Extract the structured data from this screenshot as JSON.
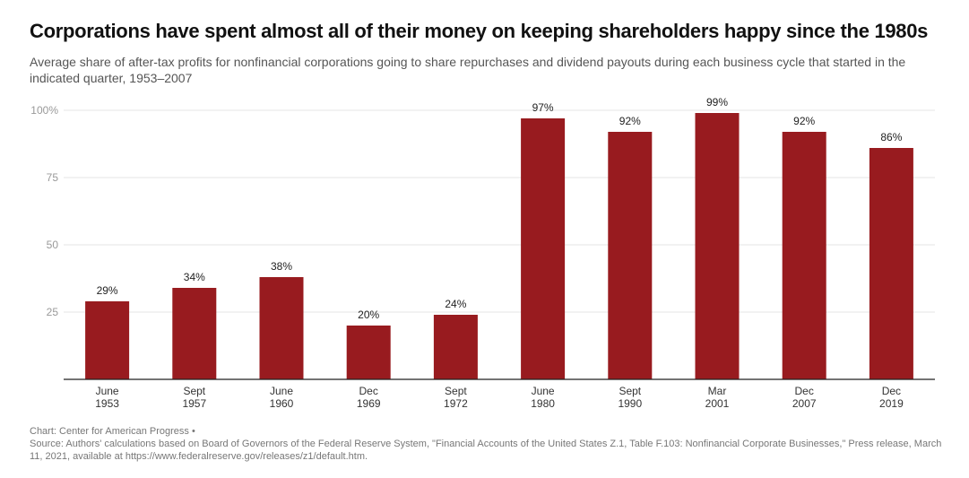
{
  "title": "Corporations have spent almost all of their money on keeping shareholders happy since the 1980s",
  "subtitle": "Average share of after-tax profits for nonfinancial corporations going to share repurchases and dividend payouts during each business cycle that started in the indicated quarter, 1953–2007",
  "footer": {
    "credit": "Chart: Center for American Progress •",
    "source": "Source: Authors' calculations based on Board of Governors of the Federal Reserve System, \"Financial Accounts of the United States Z.1, Table F.103: Nonfinancial Corporate Businesses,\" Press release, March 11, 2021, available at https://www.federalreserve.gov/releases/z1/default.htm."
  },
  "colors": {
    "bar": "#981b1f",
    "grid": "#e6e6e6",
    "axis": "#222222",
    "tick": "#999999"
  },
  "chart_data": {
    "type": "bar",
    "categories": [
      [
        "June",
        "1953"
      ],
      [
        "Sept",
        "1957"
      ],
      [
        "June",
        "1960"
      ],
      [
        "Dec",
        "1969"
      ],
      [
        "Sept",
        "1972"
      ],
      [
        "June",
        "1980"
      ],
      [
        "Sept",
        "1990"
      ],
      [
        "Mar",
        "2001"
      ],
      [
        "Dec",
        "2007"
      ],
      [
        "Dec",
        "2019"
      ]
    ],
    "values": [
      29,
      34,
      38,
      20,
      24,
      97,
      92,
      99,
      92,
      86
    ],
    "labels": [
      "29%",
      "34%",
      "38%",
      "20%",
      "24%",
      "97%",
      "92%",
      "99%",
      "92%",
      "86%"
    ],
    "yticks": [
      25,
      50,
      75,
      100
    ],
    "ytick_labels": [
      "25",
      "50",
      "75",
      "100%"
    ],
    "ylim": [
      0,
      100
    ],
    "xlabel": "",
    "ylabel": "",
    "grid": true
  }
}
